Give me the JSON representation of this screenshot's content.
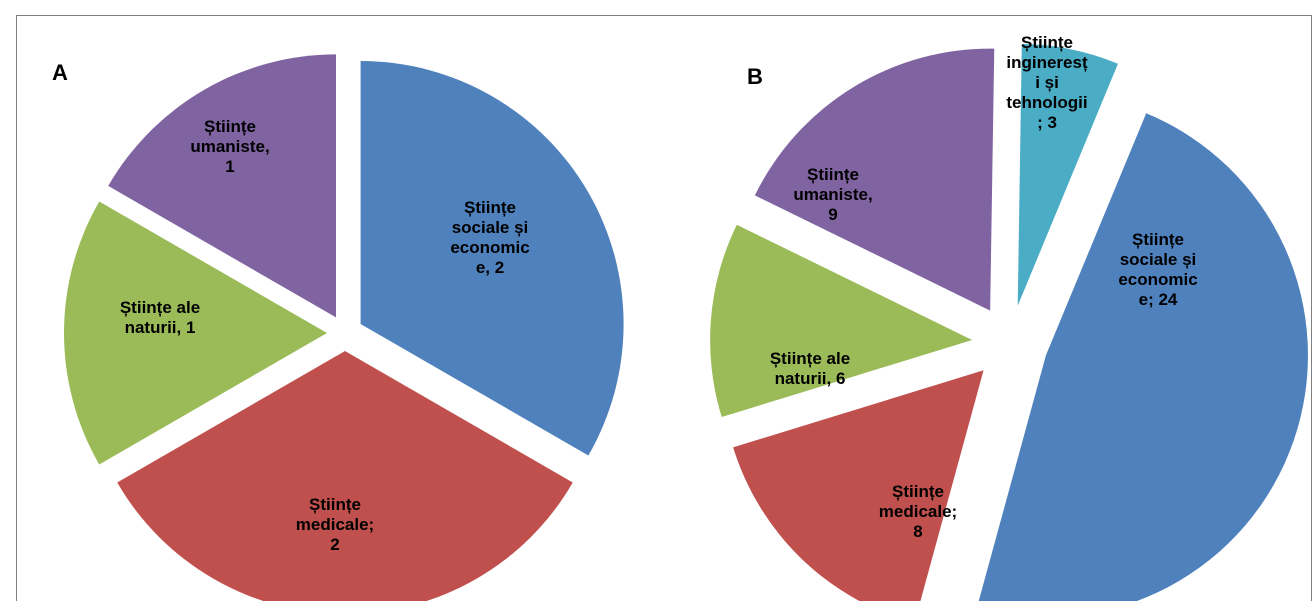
{
  "chart_data": [
    {
      "type": "pie",
      "panel": "A",
      "slices": [
        {
          "label_lines": [
            "Științe",
            "sociale și",
            "economic",
            "e, 2"
          ],
          "value": 2,
          "color": "#4f81bd"
        },
        {
          "label_lines": [
            "Științe",
            "medicale;",
            "2"
          ],
          "value": 2,
          "color": "#c0504d"
        },
        {
          "label_lines": [
            "Științe ale",
            "naturii, 1"
          ],
          "value": 1,
          "color": "#9bbb59"
        },
        {
          "label_lines": [
            "Științe",
            "umaniste,",
            "1"
          ],
          "value": 1,
          "color": "#8064a2"
        }
      ]
    },
    {
      "type": "pie",
      "panel": "B",
      "slices": [
        {
          "label_lines": [
            "Științe",
            "sociale și",
            "economic",
            "e; 24"
          ],
          "value": 24,
          "color": "#4f81bd"
        },
        {
          "label_lines": [
            "Științe",
            "medicale;",
            "8"
          ],
          "value": 8,
          "color": "#c0504d"
        },
        {
          "label_lines": [
            "Științe ale",
            "naturii, 6"
          ],
          "value": 6,
          "color": "#9bbb59"
        },
        {
          "label_lines": [
            "Științe",
            "umaniste,",
            "9"
          ],
          "value": 9,
          "color": "#8064a2"
        },
        {
          "label_lines": [
            "Științe",
            "ingineresț",
            "i și",
            "tehnologii",
            "; 3"
          ],
          "value": 3,
          "color": "#4bacc6"
        }
      ]
    }
  ]
}
